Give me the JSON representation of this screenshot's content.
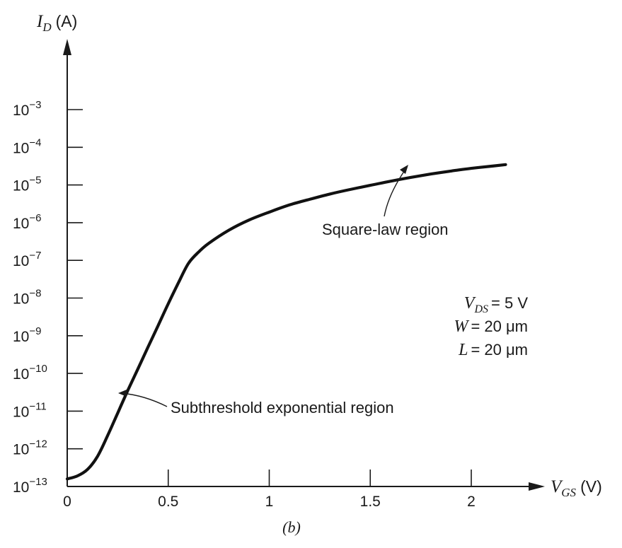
{
  "chart_data": {
    "type": "line",
    "title": "",
    "caption": "(b)",
    "x_axis": {
      "label_symbol": "V",
      "label_subscript": "GS",
      "label_unit": "(V)",
      "range": [
        0,
        2.3
      ],
      "ticks": [
        0,
        0.5,
        1,
        1.5,
        2
      ],
      "tick_labels": [
        "0",
        "0.5",
        "1",
        "1.5",
        "2"
      ]
    },
    "y_axis": {
      "label_symbol": "I",
      "label_subscript": "D",
      "label_unit": "(A)",
      "scale": "log",
      "range": [
        -13,
        -1.8
      ],
      "ticks": [
        -13,
        -12,
        -11,
        -10,
        -9,
        -8,
        -7,
        -6,
        -5,
        -4,
        -3
      ],
      "tick_labels": [
        {
          "base": "10",
          "exp": "−13"
        },
        {
          "base": "10",
          "exp": "−12"
        },
        {
          "base": "10",
          "exp": "−11"
        },
        {
          "base": "10",
          "exp": "−10"
        },
        {
          "base": "10",
          "exp": "−9"
        },
        {
          "base": "10",
          "exp": "−8"
        },
        {
          "base": "10",
          "exp": "−7"
        },
        {
          "base": "10",
          "exp": "−6"
        },
        {
          "base": "10",
          "exp": "−5"
        },
        {
          "base": "10",
          "exp": "−4"
        },
        {
          "base": "10",
          "exp": "−3"
        }
      ]
    },
    "grid": false,
    "series": [
      {
        "values_note_unused": "",
        "x": [
          0.0,
          0.05,
          0.1,
          0.15,
          0.2,
          0.25,
          0.3,
          0.35,
          0.4,
          0.45,
          0.5,
          0.55,
          0.6,
          0.65,
          0.7,
          0.8,
          0.9,
          1.0,
          1.1,
          1.2,
          1.3,
          1.4,
          1.5,
          1.6,
          1.7,
          1.8,
          1.9,
          2.0,
          2.1,
          2.17
        ],
        "log10_y": [
          -12.8,
          -12.72,
          -12.55,
          -12.2,
          -11.65,
          -11.05,
          -10.45,
          -9.88,
          -9.3,
          -8.73,
          -8.15,
          -7.6,
          -7.08,
          -6.78,
          -6.55,
          -6.2,
          -5.93,
          -5.72,
          -5.53,
          -5.38,
          -5.24,
          -5.12,
          -5.01,
          -4.9,
          -4.8,
          -4.71,
          -4.63,
          -4.56,
          -4.5,
          -4.46
        ]
      }
    ],
    "annotations": {
      "square_law": "Square-law region",
      "subthreshold": "Subthreshold exponential region"
    },
    "parameters": [
      {
        "symbol": "V",
        "sub": "DS",
        "value": "= 5 V"
      },
      {
        "symbol": "W",
        "sub": "",
        "value": "= 20 μm"
      },
      {
        "symbol": "L",
        "sub": "",
        "value": "= 20 μm"
      }
    ]
  }
}
